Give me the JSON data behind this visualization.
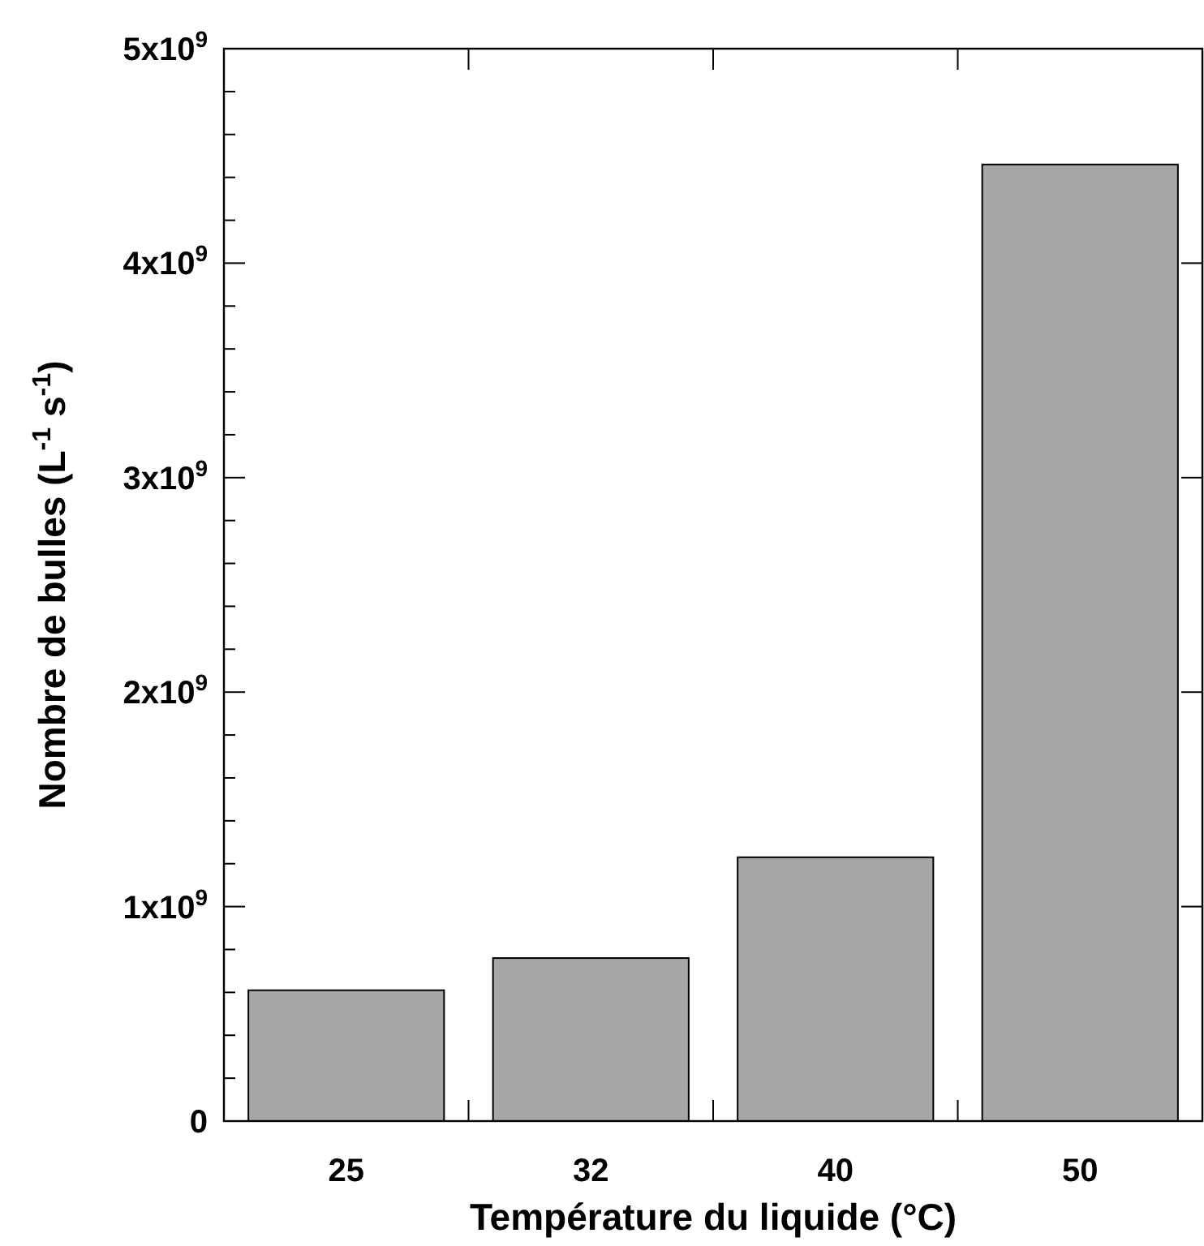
{
  "chart_data": {
    "type": "bar",
    "xlabel": "Température du liquide (°C)",
    "ylabel": "Nombre de bulles (L$^{-1}$ s$^{-1}$)",
    "categories": [
      "25",
      "32",
      "40",
      "50"
    ],
    "values": [
      610000000,
      760000000,
      1230000000,
      4460000000
    ],
    "color": "#a6a6a6",
    "ylim": [
      0,
      5000000000
    ],
    "yticks": [
      {
        "value": 0,
        "label": "0"
      },
      {
        "value": 200000000,
        "label": null
      },
      {
        "value": 400000000,
        "label": null
      },
      {
        "value": 600000000,
        "label": null
      },
      {
        "value": 800000000,
        "label": null
      },
      {
        "value": 1000000000,
        "label": "1x10$^{9}$"
      },
      {
        "value": 1200000000,
        "label": null
      },
      {
        "value": 1400000000,
        "label": null
      },
      {
        "value": 1600000000,
        "label": null
      },
      {
        "value": 1800000000,
        "label": null
      },
      {
        "value": 2000000000,
        "label": "2x10$^{9}$"
      },
      {
        "value": 2200000000,
        "label": null
      },
      {
        "value": 2400000000,
        "label": null
      },
      {
        "value": 2600000000,
        "label": null
      },
      {
        "value": 2800000000,
        "label": null
      },
      {
        "value": 3000000000,
        "label": "3x10$^{9}$"
      },
      {
        "value": 3200000000,
        "label": null
      },
      {
        "value": 3400000000,
        "label": null
      },
      {
        "value": 3600000000,
        "label": null
      },
      {
        "value": 3800000000,
        "label": null
      },
      {
        "value": 4000000000,
        "label": "4x10$^{9}$"
      },
      {
        "value": 4200000000,
        "label": null
      },
      {
        "value": 4400000000,
        "label": null
      },
      {
        "value": 4600000000,
        "label": null
      },
      {
        "value": 4800000000,
        "label": null
      },
      {
        "value": 5000000000,
        "label": "5x10$^{9}$"
      }
    ],
    "grid": false
  }
}
